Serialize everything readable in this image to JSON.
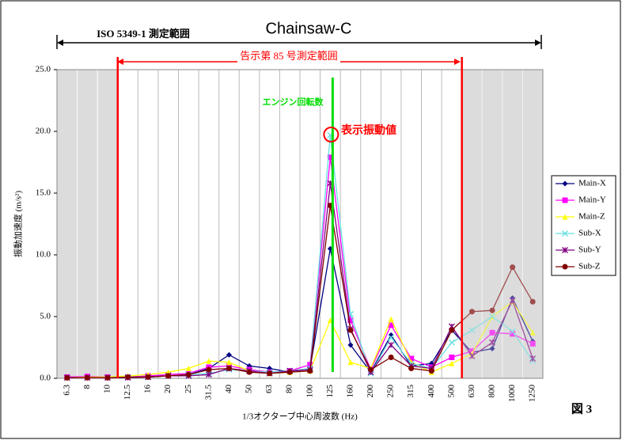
{
  "chart_data": {
    "type": "line",
    "title": "Chainsaw-C",
    "annotations": {
      "iso_range": "ISO 5349-1 測定範囲",
      "notice_range": "告示第 85 号測定範囲",
      "engine_speed": "エンジン回転数",
      "display_value": "表示振動値",
      "figure": "図 3"
    },
    "y_label": "振動加速度 (m/s²)",
    "x_label": "1/3オクターブ中心周波数 (Hz)",
    "categories": [
      "6.3",
      "8",
      "10",
      "12.5",
      "16",
      "20",
      "25",
      "31.5",
      "40",
      "50",
      "63",
      "80",
      "100",
      "125",
      "160",
      "200",
      "250",
      "315",
      "400",
      "500",
      "630",
      "800",
      "1000",
      "1250"
    ],
    "ylim": [
      0,
      25
    ],
    "yticks": [
      {
        "value": 0,
        "label": "0.0"
      },
      {
        "value": 5,
        "label": "5.0"
      },
      {
        "value": 10,
        "label": "10.0"
      },
      {
        "value": 15,
        "label": "15.0"
      },
      {
        "value": 20,
        "label": "20.0"
      },
      {
        "value": 25,
        "label": "25.0"
      }
    ],
    "series": [
      {
        "name": "Main-X",
        "color": "#000080",
        "marker": "diamond",
        "values": [
          0.1,
          0.1,
          0.05,
          0.1,
          0.15,
          0.2,
          0.3,
          0.8,
          1.9,
          1.0,
          0.8,
          0.5,
          0.8,
          10.5,
          2.7,
          0.5,
          3.5,
          1.0,
          1.2,
          3.9,
          2.1,
          2.4,
          6.5,
          3.0
        ]
      },
      {
        "name": "Main-Y",
        "color": "#ff00ff",
        "marker": "square",
        "values": [
          0.1,
          0.15,
          0.1,
          0.1,
          0.2,
          0.3,
          0.4,
          0.9,
          1.0,
          0.7,
          0.5,
          0.6,
          1.1,
          17.9,
          4.7,
          0.7,
          4.3,
          1.6,
          0.9,
          1.7,
          2.2,
          3.7,
          3.6,
          2.8
        ]
      },
      {
        "name": "Main-Z",
        "color": "#ffff00",
        "marker": "triangle",
        "values": [
          0.05,
          0.1,
          0.1,
          0.2,
          0.3,
          0.5,
          0.8,
          1.4,
          1.3,
          0.6,
          0.4,
          0.5,
          0.6,
          4.7,
          1.3,
          0.8,
          4.8,
          1.3,
          0.5,
          1.2,
          2.0,
          5.0,
          6.2,
          3.7
        ]
      },
      {
        "name": "Sub-X",
        "color": "#66e0e0",
        "marker": "x",
        "values": [
          0.05,
          0.05,
          0.05,
          0.1,
          0.1,
          0.2,
          0.3,
          0.4,
          0.7,
          0.6,
          0.5,
          0.6,
          0.8,
          19.7,
          5.2,
          0.4,
          3.3,
          1.2,
          0.8,
          2.9,
          3.9,
          5.0,
          3.8,
          1.4
        ]
      },
      {
        "name": "Sub-Y",
        "color": "#800080",
        "marker": "star",
        "values": [
          0.05,
          0.05,
          0.05,
          0.05,
          0.1,
          0.2,
          0.2,
          0.3,
          0.8,
          0.6,
          0.4,
          0.6,
          0.7,
          15.8,
          4.0,
          0.5,
          2.7,
          1.0,
          0.8,
          4.2,
          1.8,
          2.9,
          6.3,
          1.6
        ]
      },
      {
        "name": "Sub-Z",
        "color": "#800000",
        "marker": "circle",
        "values": [
          0.05,
          0.05,
          0.05,
          0.1,
          0.1,
          0.2,
          0.3,
          0.7,
          0.8,
          0.5,
          0.4,
          0.5,
          0.6,
          14.0,
          3.9,
          0.7,
          1.7,
          0.8,
          0.6,
          3.9,
          5.4,
          5.5,
          9.0,
          6.2
        ]
      }
    ]
  }
}
